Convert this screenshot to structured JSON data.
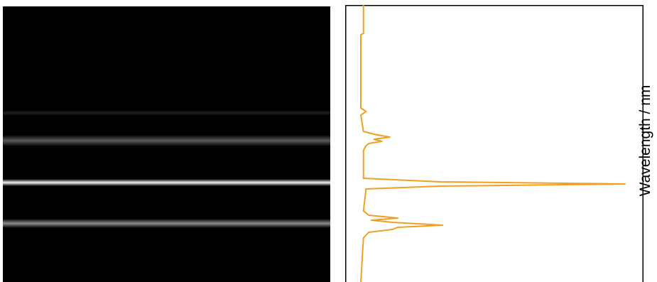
{
  "image_panel": {
    "background": "#000000",
    "bands": [
      {
        "name": "band-faint",
        "relative_brightness": 0.12
      },
      {
        "name": "band-upper",
        "relative_brightness": 0.35
      },
      {
        "name": "band-main",
        "relative_brightness": 0.95
      },
      {
        "name": "band-lower",
        "relative_brightness": 0.55
      }
    ]
  },
  "chart_data": {
    "type": "line",
    "orientation": "vertical",
    "ylabel": "Wavelength / nm",
    "line_color": "#f0a020",
    "x_ticks": [],
    "y_ticks": [],
    "grid": false,
    "series": [
      {
        "values": [
          {
            "pos": 0,
            "intensity": 0.01
          },
          {
            "pos": 40,
            "intensity": 0.01
          },
          {
            "pos": 42,
            "intensity": 0.0
          },
          {
            "pos": 145,
            "intensity": 0.0
          },
          {
            "pos": 150,
            "intensity": 0.02
          },
          {
            "pos": 155,
            "intensity": 0.0
          },
          {
            "pos": 178,
            "intensity": 0.01
          },
          {
            "pos": 182,
            "intensity": 0.05
          },
          {
            "pos": 186,
            "intensity": 0.11
          },
          {
            "pos": 189,
            "intensity": 0.05
          },
          {
            "pos": 192,
            "intensity": 0.08
          },
          {
            "pos": 195,
            "intensity": 0.03
          },
          {
            "pos": 198,
            "intensity": 0.02
          },
          {
            "pos": 205,
            "intensity": 0.01
          },
          {
            "pos": 244,
            "intensity": 0.01
          },
          {
            "pos": 249,
            "intensity": 0.3
          },
          {
            "pos": 252,
            "intensity": 1.0
          },
          {
            "pos": 255,
            "intensity": 0.3
          },
          {
            "pos": 259,
            "intensity": 0.02
          },
          {
            "pos": 290,
            "intensity": 0.01
          },
          {
            "pos": 296,
            "intensity": 0.03
          },
          {
            "pos": 300,
            "intensity": 0.14
          },
          {
            "pos": 303,
            "intensity": 0.04
          },
          {
            "pos": 306,
            "intensity": 0.12
          },
          {
            "pos": 310,
            "intensity": 0.31
          },
          {
            "pos": 313,
            "intensity": 0.14
          },
          {
            "pos": 316,
            "intensity": 0.12
          },
          {
            "pos": 320,
            "intensity": 0.03
          },
          {
            "pos": 328,
            "intensity": 0.01
          },
          {
            "pos": 390,
            "intensity": 0.0
          }
        ]
      }
    ]
  }
}
